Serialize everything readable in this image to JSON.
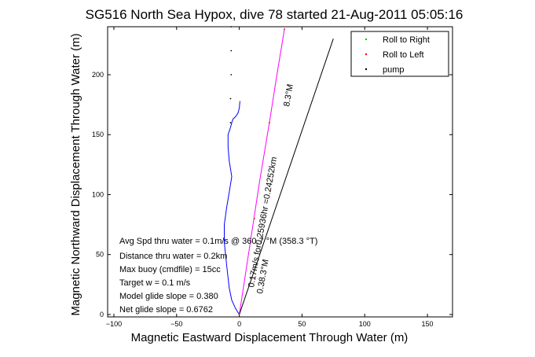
{
  "chart_data": {
    "type": "line",
    "title": "SG516 North Sea Hypox, dive 78 started 21-Aug-2011 05:05:16",
    "xlabel": "Magnetic Eastward Displacement Through Water (m)",
    "ylabel": "Magnetic Northward Displacement Through Water (m)",
    "xlim": [
      -105,
      170
    ],
    "ylim": [
      -2,
      240
    ],
    "xticks": [
      -100,
      -50,
      0,
      50,
      100,
      150
    ],
    "yticks": [
      0,
      50,
      100,
      150,
      200
    ],
    "grid": false,
    "legend_position": "top-right",
    "series": [
      {
        "name": "Roll to Right",
        "color": "#00cc00",
        "marker": "dot",
        "x": [
          0,
          12,
          24,
          36
        ],
        "y": [
          0,
          80,
          160,
          238
        ]
      },
      {
        "name": "Roll to Left",
        "color": "#ff0000",
        "marker": "dot",
        "x": [
          0,
          12,
          24,
          36
        ],
        "y": [
          0,
          80,
          160,
          238
        ]
      },
      {
        "name": "pump",
        "color": "#000000",
        "marker": "dot",
        "x": [
          -7,
          -7,
          -6.5,
          -6.5,
          -6.5
        ],
        "y": [
          160,
          180,
          200,
          220,
          240
        ]
      }
    ],
    "lines": [
      {
        "name": "track",
        "color": "#0000ff",
        "x": [
          0,
          -3,
          -6,
          -8,
          -10,
          -12,
          -12,
          -10,
          -8,
          -6,
          -8,
          -9,
          -9,
          -7,
          -6,
          -5,
          -3,
          -1,
          0,
          0.5
        ],
        "y": [
          0,
          5,
          12,
          22,
          40,
          60,
          75,
          90,
          102,
          115,
          128,
          140,
          150,
          156,
          160,
          163,
          165,
          168,
          172,
          178
        ]
      },
      {
        "name": "glide",
        "color": "#ff00ff",
        "x": [
          0,
          8,
          16,
          24,
          30,
          36
        ],
        "y": [
          0,
          55,
          110,
          160,
          200,
          238
        ]
      },
      {
        "name": "heading",
        "color": "#000000",
        "x": [
          0,
          75
        ],
        "y": [
          0,
          230
        ]
      }
    ],
    "annotations": [
      {
        "text": "Avg Spd thru water =  0.1",
        "suffix": "m/s @ 360.7   °M (358.3 °T)"
      },
      {
        "text": "Distance thru water =  0.2",
        "suffix": "km"
      },
      {
        "text": "Max buoy (cmdfile) = 15",
        "suffix": "cc"
      },
      {
        "text": "Target w = 0.1 m/s"
      },
      {
        "text": "Model glide slope = 0.38",
        "suffix": "0"
      },
      {
        "text": "Net glide slope = 0.6762"
      }
    ],
    "rotated_labels": [
      {
        "text": "0.1",
        "suffix": "7m/s for0.25936hr =0.24252km"
      },
      {
        "text": "8.3°M",
        "suffix": ""
      },
      {
        "text": "0.3",
        "suffix": "8.3°M"
      }
    ]
  }
}
